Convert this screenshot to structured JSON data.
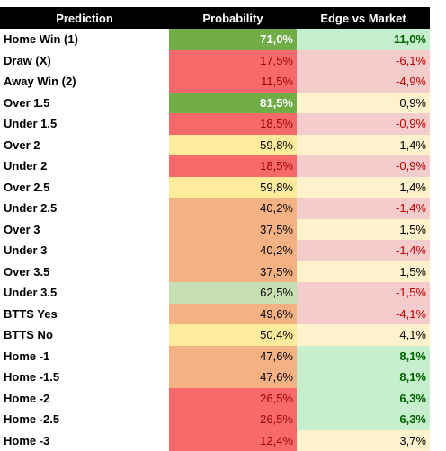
{
  "table": {
    "header": [
      "Prediction",
      "Probability",
      "Edge vs Market"
    ],
    "rows": [
      [
        "Home Win (1)",
        "71,0%",
        "11,0%"
      ],
      [
        "Draw (X)",
        "17,5%",
        "-6,1%"
      ],
      [
        "Away Win (2)",
        "11,5%",
        "-4,9%"
      ],
      [
        "Over 1.5",
        "81,5%",
        "0,9%"
      ],
      [
        "Under 1.5",
        "18,5%",
        "-0,9%"
      ],
      [
        "Over 2",
        "59,8%",
        "1,4%"
      ],
      [
        "Under 2",
        "18,5%",
        "-0,9%"
      ],
      [
        "Over 2.5",
        "59,8%",
        "1,4%"
      ],
      [
        "Under 2.5",
        "40,2%",
        "-1,4%"
      ],
      [
        "Over 3",
        "37,5%",
        "1,5%"
      ],
      [
        "Under 3",
        "40,2%",
        "-1,4%"
      ],
      [
        "Over 3.5",
        "37,5%",
        "1,5%"
      ],
      [
        "Under 3.5",
        "62,5%",
        "-1,5%"
      ],
      [
        "BTTS Yes",
        "49,6%",
        "-4,1%"
      ],
      [
        "BTTS No",
        "50,4%",
        "4,1%"
      ],
      [
        "Home -1",
        "47,6%",
        "8,1%"
      ],
      [
        "Home -1.5",
        "47,6%",
        "8,1%"
      ],
      [
        "Home -2",
        "26,5%",
        "6,3%"
      ],
      [
        "Home -2.5",
        "26,5%",
        "6,3%"
      ],
      [
        "Home -3",
        "12,4%",
        "3,7%"
      ]
    ]
  }
}
